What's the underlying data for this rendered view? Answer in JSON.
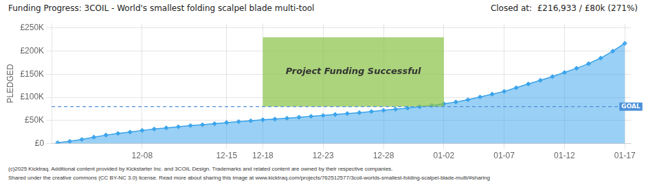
{
  "chart_data": {
    "type": "area",
    "title": "Funding Progress: 3COIL - World's smallest folding scalpel blade multi-tool",
    "subtitle": "Closed at:  £216,933 / £80k (271%)",
    "y_label": "PLEDGED",
    "marker": "diamond",
    "grid": true,
    "categories": [
      null,
      null,
      null,
      null,
      null,
      null,
      null,
      "12-08",
      null,
      null,
      null,
      null,
      null,
      null,
      "12-15",
      null,
      null,
      "12-18",
      null,
      null,
      null,
      null,
      "12-23",
      null,
      null,
      null,
      null,
      "12-28",
      null,
      null,
      null,
      null,
      "01-02",
      null,
      null,
      null,
      null,
      "01-07",
      null,
      null,
      null,
      null,
      "01-12",
      null,
      null,
      null,
      null,
      "01-17"
    ],
    "values": [
      2000,
      5000,
      9000,
      14000,
      18500,
      22000,
      25000,
      28500,
      31500,
      34000,
      36500,
      39000,
      41000,
      43000,
      45500,
      47500,
      49500,
      51500,
      53000,
      55000,
      57000,
      59000,
      61000,
      63000,
      65000,
      67000,
      69500,
      72000,
      74500,
      77000,
      80000,
      82500,
      86000,
      90000,
      95000,
      101000,
      107000,
      113000,
      121000,
      129000,
      137000,
      145000,
      154000,
      163000,
      173000,
      185000,
      200000,
      216933
    ],
    "ylim": [
      0,
      260000
    ],
    "yticks": [
      {
        "value": 0,
        "label": "£0"
      },
      {
        "value": 50000,
        "label": "£50K"
      },
      {
        "value": 100000,
        "label": "£100K"
      },
      {
        "value": 150000,
        "label": "£150K"
      },
      {
        "value": 200000,
        "label": "£200K"
      },
      {
        "value": 250000,
        "label": "£250K"
      }
    ],
    "annotations": [
      {
        "type": "hline",
        "y": 80000,
        "label": "GOAL",
        "color": "#4a90d9",
        "line_style": "dashed"
      },
      {
        "type": "box",
        "x": [
          "12-18",
          "01-02"
        ],
        "y": [
          80000,
          230000
        ],
        "text": "Project Funding Successful",
        "color": "#8bc34a"
      },
      {
        "type": "footer",
        "text": "(c)2025 Kicktraq. Additional content provided by Kickstarter Inc. and 3COIL Design. Trademarks and related content are owned by their respective companies."
      },
      {
        "type": "footer",
        "text": "Shared under the creative commons (CC BY-NC 3.0) license. Read more about sharing this image at www.kicktraq.com/projects/762512577/3coil-worlds-smallest-folding-scalpel-blade-multi/#sharing"
      }
    ]
  }
}
